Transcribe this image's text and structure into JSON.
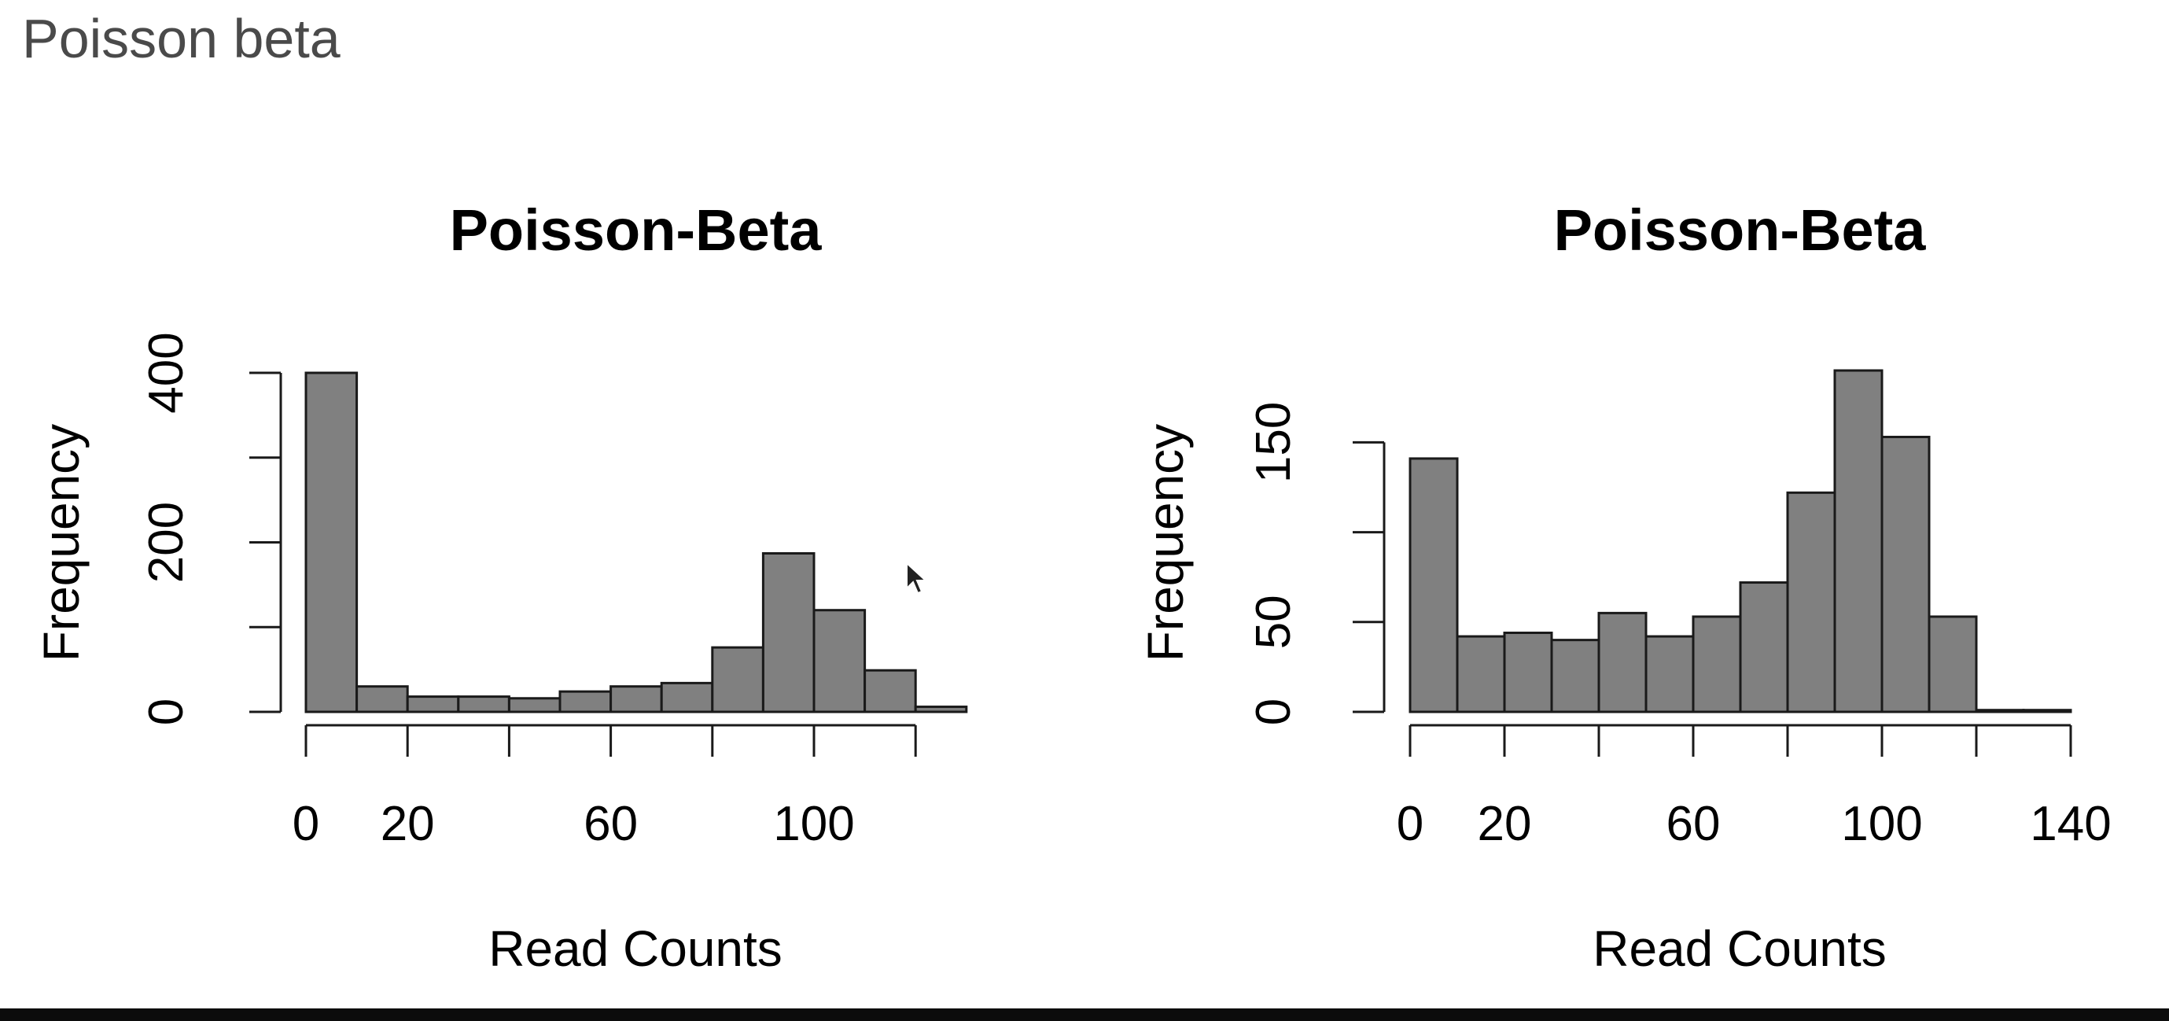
{
  "page": {
    "title": "Poisson beta"
  },
  "style": {
    "bar_fill": "#808080",
    "bar_stroke": "#1a1a1a",
    "axis_color": "#1a1a1a",
    "text_color": "#000000",
    "bottom_bar_color": "#0c0c0c"
  },
  "chart_data": [
    {
      "type": "bar",
      "title": "Poisson-Beta",
      "xlabel": "Read Counts",
      "ylabel": "Frequency",
      "bin_edges": [
        0,
        10,
        20,
        30,
        40,
        50,
        60,
        70,
        80,
        90,
        100,
        110,
        120,
        130
      ],
      "values": [
        400,
        30,
        18,
        18,
        16,
        24,
        30,
        34,
        76,
        187,
        120,
        49,
        6
      ],
      "xlim": [
        0,
        130
      ],
      "ylim": [
        0,
        400
      ],
      "x_axis_ticks": [
        0,
        20,
        40,
        60,
        80,
        100,
        120
      ],
      "x_tick_labels": [
        {
          "value": 0,
          "label": "0"
        },
        {
          "value": 20,
          "label": "20"
        },
        {
          "value": 60,
          "label": "60"
        },
        {
          "value": 100,
          "label": "100"
        }
      ],
      "y_axis_ticks": [
        0,
        100,
        200,
        300,
        400
      ],
      "y_tick_labels": [
        {
          "value": 0,
          "label": "0"
        },
        {
          "value": 200,
          "label": "200"
        },
        {
          "value": 400,
          "label": "400"
        }
      ]
    },
    {
      "type": "bar",
      "title": "Poisson-Beta",
      "xlabel": "Read Counts",
      "ylabel": "Frequency",
      "bin_edges": [
        0,
        10,
        20,
        30,
        40,
        50,
        60,
        70,
        80,
        90,
        100,
        110,
        120,
        130,
        140
      ],
      "values": [
        141,
        42,
        44,
        40,
        55,
        42,
        53,
        72,
        122,
        190,
        153,
        53,
        1,
        1
      ],
      "xlim": [
        0,
        140
      ],
      "ylim": [
        0,
        190
      ],
      "x_axis_ticks": [
        0,
        20,
        40,
        60,
        80,
        100,
        120,
        140
      ],
      "x_tick_labels": [
        {
          "value": 0,
          "label": "0"
        },
        {
          "value": 20,
          "label": "20"
        },
        {
          "value": 60,
          "label": "60"
        },
        {
          "value": 100,
          "label": "100"
        },
        {
          "value": 140,
          "label": "140"
        }
      ],
      "y_axis_ticks": [
        0,
        50,
        100,
        150
      ],
      "y_tick_labels": [
        {
          "value": 0,
          "label": "0"
        },
        {
          "value": 50,
          "label": "50"
        },
        {
          "value": 150,
          "label": "150"
        }
      ]
    }
  ]
}
